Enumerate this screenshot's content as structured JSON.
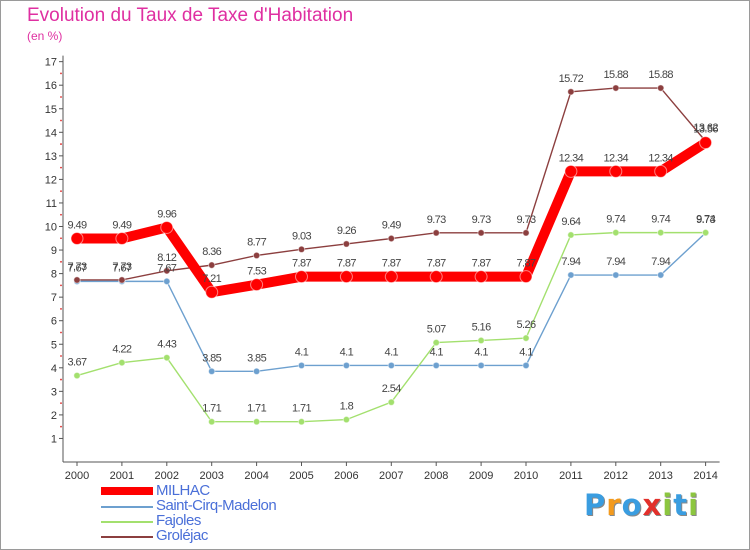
{
  "title": "Evolution du Taux de Taxe d'Habitation",
  "subtitle": "(en %)",
  "logo": {
    "text": "Proxiti",
    "colors": [
      "#3a9de0",
      "#f39a1d",
      "#3a9de0",
      "#e2302b",
      "#8cc63f",
      "#3a9de0",
      "#8cc63f"
    ]
  },
  "chart_data": {
    "type": "line",
    "x": [
      2000,
      2001,
      2002,
      2003,
      2004,
      2005,
      2006,
      2007,
      2008,
      2009,
      2010,
      2011,
      2012,
      2013,
      2014
    ],
    "ylim": [
      0,
      17
    ],
    "yticks": [
      1,
      2,
      3,
      4,
      5,
      6,
      7,
      8,
      9,
      10,
      11,
      12,
      13,
      14,
      15,
      16,
      17
    ],
    "grid": false,
    "legend": "bottom-left",
    "series": [
      {
        "name": "MILHAC",
        "color": "#ff0000",
        "values": [
          9.49,
          9.49,
          9.96,
          7.21,
          7.53,
          7.87,
          7.87,
          7.87,
          7.87,
          7.87,
          7.87,
          12.34,
          12.34,
          12.34,
          13.56
        ],
        "labels": [
          "9.49",
          "9.49",
          "9.96",
          "7.21",
          "7.53",
          "7.87",
          "7.87",
          "7.87",
          "7.87",
          "7.87",
          "7.87",
          "12.34",
          "12.34",
          "12.34",
          "13.56"
        ]
      },
      {
        "name": "Saint-Cirq-Madelon",
        "color": "#6da0cf",
        "values": [
          7.67,
          7.67,
          7.67,
          3.85,
          3.85,
          4.1,
          4.1,
          4.1,
          4.1,
          4.1,
          4.1,
          7.94,
          7.94,
          7.94,
          9.73
        ],
        "labels": [
          "7.67",
          "7.67",
          "7.67",
          "3.85",
          "3.85",
          "4.1",
          "4.1",
          "4.1",
          "4.1",
          "4.1",
          "4.1",
          "7.94",
          "7.94",
          "7.94",
          "9.73"
        ]
      },
      {
        "name": "Fajoles",
        "color": "#a3e06e",
        "values": [
          3.67,
          4.22,
          4.43,
          1.71,
          1.71,
          1.71,
          1.8,
          2.54,
          5.07,
          5.16,
          5.26,
          9.64,
          9.74,
          9.74,
          9.74
        ],
        "labels": [
          "3.67",
          "4.22",
          "4.43",
          "1.71",
          "1.71",
          "1.71",
          "1.8",
          "2.54",
          "5.07",
          "5.16",
          "5.26",
          "9.64",
          "9.74",
          "9.74",
          "9.74"
        ]
      },
      {
        "name": "Groléjac",
        "color": "#8c3f3f",
        "values": [
          7.73,
          7.73,
          8.12,
          8.36,
          8.77,
          9.03,
          9.26,
          9.49,
          9.73,
          9.73,
          9.73,
          15.72,
          15.88,
          15.88,
          13.62
        ],
        "labels": [
          "7.73",
          "7.73",
          "8.12",
          "8.36",
          "8.77",
          "9.03",
          "9.26",
          "9.49",
          "9.73",
          "9.73",
          "9.73",
          "15.72",
          "15.88",
          "15.88",
          "13.62"
        ]
      }
    ]
  }
}
